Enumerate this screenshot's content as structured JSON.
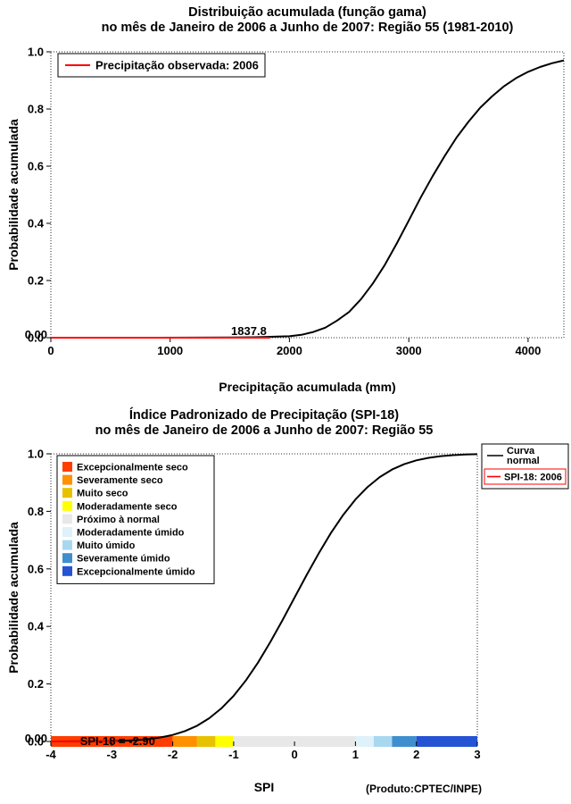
{
  "page": {
    "background": "#ffffff"
  },
  "chart_data": [
    {
      "type": "line",
      "title": "Distribuição acumulada (função gama)",
      "subtitle": "no mês de Janeiro de 2006 a Junho de 2007: Região 55 (1981-2010)",
      "xlabel": "Precipitação acumulada (mm)",
      "ylabel": "Probabilidade acumulada",
      "xlim": [
        0,
        4300
      ],
      "ylim": [
        0,
        1.0
      ],
      "xticks": [
        0,
        1000,
        2000,
        3000,
        4000
      ],
      "yticks": [
        "0.0",
        "0.2",
        "0.4",
        "0.6",
        "0.8",
        "1.0"
      ],
      "extra_ytick_label": "0.00",
      "grid": false,
      "legend_position": "top-left",
      "legend": [
        {
          "label": "Precipitação observada: 2006",
          "color": "#ff0000"
        }
      ],
      "series": [
        {
          "id": "gamma-cdf-curve",
          "name": "Distribuição acumulada (função gama)",
          "color": "#000000",
          "width": 2,
          "x": [
            0,
            300,
            600,
            900,
            1200,
            1500,
            1700,
            1838,
            1900,
            2000,
            2100,
            2200,
            2300,
            2400,
            2500,
            2600,
            2700,
            2800,
            2900,
            3000,
            3100,
            3200,
            3300,
            3400,
            3500,
            3600,
            3700,
            3800,
            3900,
            4000,
            4100,
            4200,
            4300
          ],
          "y": [
            0,
            0,
            0,
            0,
            0.0002,
            0.0008,
            0.0015,
            0.003,
            0.004,
            0.005,
            0.01,
            0.02,
            0.035,
            0.06,
            0.09,
            0.135,
            0.19,
            0.255,
            0.33,
            0.41,
            0.49,
            0.565,
            0.635,
            0.7,
            0.755,
            0.805,
            0.845,
            0.88,
            0.908,
            0.93,
            0.947,
            0.96,
            0.97
          ]
        },
        {
          "id": "observed-precipitation-line",
          "name": "Precipitação observada: 2006",
          "color": "#ff0000",
          "width": 2,
          "x": [
            0,
            1837.8
          ],
          "y": [
            0,
            0
          ]
        }
      ],
      "annotations": [
        {
          "text": "1837.8",
          "x": 1837.8,
          "y": 0
        }
      ],
      "observed_value_mm": 1837.8
    },
    {
      "type": "line",
      "title": "Índice Padronizado de Precipitação (SPI-18)",
      "subtitle": "no mês de Janeiro de 2006 a Junho de 2007: Região 55",
      "xlabel": "SPI",
      "ylabel": "Probabilidade acumulada",
      "footnote": "(Produto:CPTEC/INPE)",
      "xlim": [
        -4,
        3
      ],
      "ylim": [
        0,
        1.0
      ],
      "xticks": [
        -4,
        -3,
        -2,
        -1,
        0,
        1,
        2,
        3
      ],
      "yticks": [
        "0.0",
        "0.2",
        "0.4",
        "0.6",
        "0.8",
        "1.0"
      ],
      "extra_ytick_label": "0.00",
      "grid": false,
      "categories_legend": [
        {
          "label": "Excepcionalmente seco",
          "color": "#ff3d00"
        },
        {
          "label": "Severamente seco",
          "color": "#ff9100"
        },
        {
          "label": "Muito seco",
          "color": "#e6c200"
        },
        {
          "label": "Moderadamente seco",
          "color": "#ffff00"
        },
        {
          "label": "Próximo à normal",
          "color": "#e8e8e8"
        },
        {
          "label": "Moderadamente úmido",
          "color": "#dff1f9"
        },
        {
          "label": "Muito úmido",
          "color": "#a8d8f0"
        },
        {
          "label": "Severamente úmido",
          "color": "#3f8fce"
        },
        {
          "label": "Excepcionalmente úmido",
          "color": "#2453d4"
        }
      ],
      "curve_legend": [
        {
          "label": "Curva\nnormal",
          "color": "#000000"
        },
        {
          "label": "SPI-18: 2006",
          "color": "#ff0000",
          "box_color": "#ff0000"
        }
      ],
      "series": [
        {
          "id": "normal-cdf-curve",
          "name": "Curva normal",
          "color": "#000000",
          "width": 2,
          "x": [
            -4,
            -3.6,
            -3.2,
            -3,
            -2.8,
            -2.6,
            -2.4,
            -2.2,
            -2,
            -1.8,
            -1.6,
            -1.4,
            -1.2,
            -1,
            -0.8,
            -0.6,
            -0.4,
            -0.2,
            0,
            0.2,
            0.4,
            0.6,
            0.8,
            1,
            1.2,
            1.4,
            1.6,
            1.8,
            2,
            2.2,
            2.4,
            2.6,
            2.8,
            3
          ],
          "y": [
            0.0,
            0.0002,
            0.0007,
            0.0013,
            0.0026,
            0.0047,
            0.0082,
            0.0139,
            0.0228,
            0.0359,
            0.0548,
            0.0808,
            0.1151,
            0.1587,
            0.2119,
            0.2743,
            0.3446,
            0.4207,
            0.5,
            0.5793,
            0.6554,
            0.7257,
            0.7881,
            0.8413,
            0.8849,
            0.9192,
            0.9452,
            0.9641,
            0.9772,
            0.9861,
            0.9918,
            0.9953,
            0.9974,
            0.9987
          ]
        },
        {
          "id": "spi-observed-line",
          "name": "SPI-18: 2006",
          "color": "#ff0000",
          "width": 2,
          "x": [
            -4,
            -2.9
          ],
          "y": [
            0,
            0
          ]
        }
      ],
      "color_bar": {
        "y": 0,
        "segments": [
          {
            "from": -4,
            "to": -2,
            "color": "#ff3d00"
          },
          {
            "from": -2,
            "to": -1.6,
            "color": "#ff9100"
          },
          {
            "from": -1.6,
            "to": -1.3,
            "color": "#e6c200"
          },
          {
            "from": -1.3,
            "to": -1,
            "color": "#ffff00"
          },
          {
            "from": -1,
            "to": 1,
            "color": "#e8e8e8"
          },
          {
            "from": 1,
            "to": 1.3,
            "color": "#dff1f9"
          },
          {
            "from": 1.3,
            "to": 1.6,
            "color": "#a8d8f0"
          },
          {
            "from": 1.6,
            "to": 2,
            "color": "#3f8fce"
          },
          {
            "from": 2,
            "to": 3,
            "color": "#2453d4"
          }
        ]
      },
      "annotations": [
        {
          "text": "SPI-18 = -2.90",
          "x": -3.55,
          "y": 0
        }
      ],
      "spi_value": -2.9
    }
  ]
}
